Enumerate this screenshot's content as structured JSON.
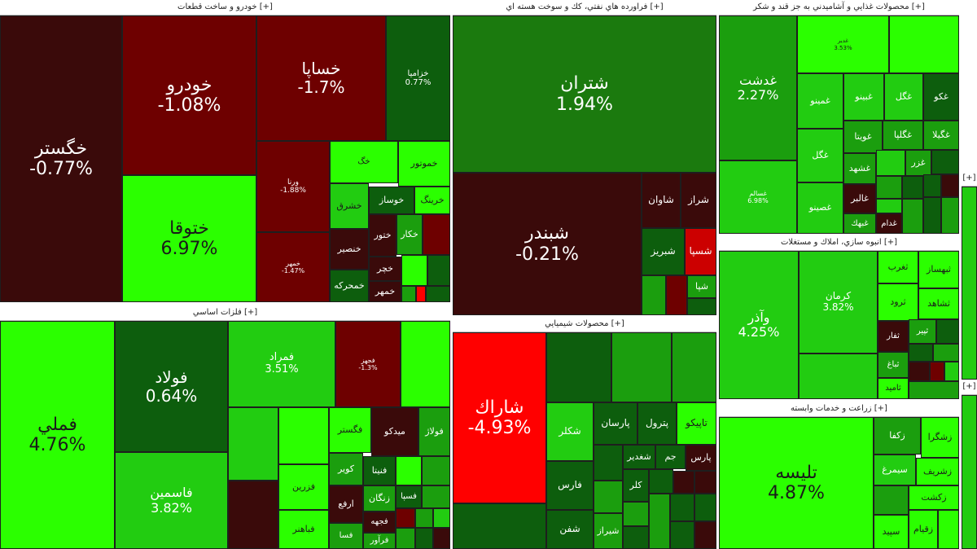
{
  "sections": [
    {
      "id": "auto",
      "title": "خودرو و ساخت قطعات",
      "plus": "[+]"
    },
    {
      "id": "oil",
      "title": "فراورده هاي نفتي، كك و سوخت هسته اي",
      "plus": "[+]"
    },
    {
      "id": "food",
      "title": "محصولات غذايي و آشاميدني به جز قند و شكر",
      "plus": "[+]"
    },
    {
      "id": "metals",
      "title": "فلزات اساسي",
      "plus": "[+]"
    },
    {
      "id": "chem",
      "title": "محصولات شيميايي",
      "plus": "[+]"
    },
    {
      "id": "build",
      "title": "انبوه سازي، املاك و مستغلات",
      "plus": "[+]"
    },
    {
      "id": "agri",
      "title": "زراعت و خدمات وابسته",
      "plus": "[+]"
    },
    {
      "id": "side1",
      "title": "",
      "plus": "[+]"
    },
    {
      "id": "side2",
      "title": "",
      "plus": "[+]"
    }
  ],
  "colors": {
    "strong_neg": "#3a0a0a",
    "neg": "#6e0000",
    "mid_neg": "#7a0a0a",
    "light_neg": "#5a0000",
    "strong_pos": "#2bff00",
    "pos": "#22cc11",
    "mid_pos": "#1b9e0e",
    "dark_pos": "#0d5e0d",
    "red": "#ff0000"
  },
  "tiles": {
    "khegostar": {
      "name": "خگستر",
      "pct": "-0.77%"
    },
    "khodro": {
      "name": "خودرو",
      "pct": "-1.08%"
    },
    "khsapa": {
      "name": "خساپا",
      "pct": "-1.7%"
    },
    "khzamia": {
      "name": "خزاميا",
      "pct": "0.77%"
    },
    "khtoqa": {
      "name": "ختوقا",
      "pct": "6.97%"
    },
    "vrna": {
      "name": "ورنا",
      "pct": "-1.88%"
    },
    "khmhr": {
      "name": "خمهر",
      "pct": "-1.47%"
    },
    "khmotor": {
      "name": "خموتور",
      "pct": ""
    },
    "kh1": {
      "name": "خگ",
      "pct": ""
    },
    "khsharq": {
      "name": "خشرق",
      "pct": ""
    },
    "khosaz": {
      "name": "خوساز",
      "pct": ""
    },
    "khring": {
      "name": "خرينگ",
      "pct": ""
    },
    "khtor": {
      "name": "ختور",
      "pct": ""
    },
    "khkar": {
      "name": "خكار",
      "pct": ""
    },
    "khnasr": {
      "name": "خنصير",
      "pct": ""
    },
    "khchar": {
      "name": "خچر",
      "pct": ""
    },
    "khmhrke": {
      "name": "خمحركه",
      "pct": ""
    },
    "khmhr2": {
      "name": "خمهر",
      "pct": ""
    },
    "shetran": {
      "name": "شتران",
      "pct": "1.94%"
    },
    "shbandar": {
      "name": "شبندر",
      "pct": "-0.21%"
    },
    "shavan": {
      "name": "شاوان",
      "pct": ""
    },
    "shraz": {
      "name": "شراز",
      "pct": ""
    },
    "shtabriz": {
      "name": "شبريز",
      "pct": ""
    },
    "shsipa": {
      "name": "شسپا",
      "pct": ""
    },
    "shpa": {
      "name": "شپا",
      "pct": ""
    },
    "ghadasht": {
      "name": "غدشت",
      "pct": "2.27%"
    },
    "ghsalem": {
      "name": "غسالم",
      "pct": "6.98%"
    },
    "ghmino": {
      "name": "غمينو",
      "pct": ""
    },
    "ghbino": {
      "name": "غبينو",
      "pct": ""
    },
    "ghgol": {
      "name": "غگل",
      "pct": ""
    },
    "ghko": {
      "name": "غكو",
      "pct": ""
    },
    "ghviota": {
      "name": "غويتا",
      "pct": ""
    },
    "ghgolpa": {
      "name": "غگلپا",
      "pct": ""
    },
    "ghgila": {
      "name": "غگيلا",
      "pct": ""
    },
    "ghg": {
      "name": "غگل",
      "pct": ""
    },
    "ghshahd": {
      "name": "غشهد",
      "pct": ""
    },
    "ghzar": {
      "name": "غزر",
      "pct": ""
    },
    "ghsseno": {
      "name": "غصينو",
      "pct": ""
    },
    "ghalbor": {
      "name": "غالبر",
      "pct": ""
    },
    "ghbak": {
      "name": "غبهك",
      "pct": ""
    },
    "ghdam": {
      "name": "غدام",
      "pct": ""
    },
    "ghsmall1": {
      "name": "غدير",
      "pct": "3.53%"
    },
    "fameli": {
      "name": "فملي",
      "pct": "4.76%"
    },
    "foolad": {
      "name": "فولاد",
      "pct": "0.64%"
    },
    "fasmin": {
      "name": "فاسمين",
      "pct": "3.82%"
    },
    "famrad": {
      "name": "فمراد",
      "pct": "3.51%"
    },
    "fjahr": {
      "name": "فجهز",
      "pct": "-1.3%"
    },
    "fgostar": {
      "name": "فگستر",
      "pct": ""
    },
    "mideko": {
      "name": "ميدكو",
      "pct": ""
    },
    "fvolaz": {
      "name": "فولاژ",
      "pct": ""
    },
    "fkawar": {
      "name": "كوير",
      "pct": ""
    },
    "fnitna": {
      "name": "فنيتا",
      "pct": ""
    },
    "fzarin": {
      "name": "فزرين",
      "pct": ""
    },
    "farfa": {
      "name": "ارفع",
      "pct": ""
    },
    "zangan": {
      "name": "زنگان",
      "pct": ""
    },
    "fsa": {
      "name": "فسپا",
      "pct": ""
    },
    "fjaha": {
      "name": "فجهه",
      "pct": ""
    },
    "fabahn": {
      "name": "فباهنر",
      "pct": ""
    },
    "fsa2": {
      "name": "فسا",
      "pct": ""
    },
    "froor": {
      "name": "فرآور",
      "pct": ""
    },
    "sharak": {
      "name": "شاراك",
      "pct": "-4.93%"
    },
    "shklar": {
      "name": "شكلر",
      "pct": ""
    },
    "parsan": {
      "name": "پارسان",
      "pct": ""
    },
    "patrol": {
      "name": "پترول",
      "pct": ""
    },
    "tapiko": {
      "name": "تاپيكو",
      "pct": ""
    },
    "jam": {
      "name": "جم",
      "pct": ""
    },
    "pars": {
      "name": "پارس",
      "pct": ""
    },
    "shghdir": {
      "name": "شغدير",
      "pct": ""
    },
    "fars": {
      "name": "فارس",
      "pct": ""
    },
    "shafan": {
      "name": "شفن",
      "pct": ""
    },
    "shiraz": {
      "name": "شيراز",
      "pct": ""
    },
    "klar": {
      "name": "كلر",
      "pct": ""
    },
    "vadar": {
      "name": "وآذر",
      "pct": "4.25%"
    },
    "kerman": {
      "name": "كرمان",
      "pct": "3.82%"
    },
    "tghrb": {
      "name": "ثغرب",
      "pct": ""
    },
    "tbahsaz": {
      "name": "ثبهساز",
      "pct": ""
    },
    "trood": {
      "name": "ثرود",
      "pct": ""
    },
    "tshahed": {
      "name": "ثشاهد",
      "pct": ""
    },
    "tfar": {
      "name": "ثفار",
      "pct": ""
    },
    "tpir": {
      "name": "ثپير",
      "pct": ""
    },
    "tbagh": {
      "name": "ثباغ",
      "pct": ""
    },
    "tamid": {
      "name": "ثاميد",
      "pct": ""
    },
    "talisa": {
      "name": "تليسه",
      "pct": "4.87%"
    },
    "zshgra": {
      "name": "زشگرا",
      "pct": ""
    },
    "zkfa": {
      "name": "زكفا",
      "pct": ""
    },
    "zsharif": {
      "name": "زشريف",
      "pct": ""
    },
    "simorgh": {
      "name": "سيمرغ",
      "pct": ""
    },
    "zkasht": {
      "name": "زكشت",
      "pct": ""
    },
    "sapid": {
      "name": "سپيد",
      "pct": ""
    },
    "zqiam": {
      "name": "زقيام",
      "pct": ""
    }
  }
}
